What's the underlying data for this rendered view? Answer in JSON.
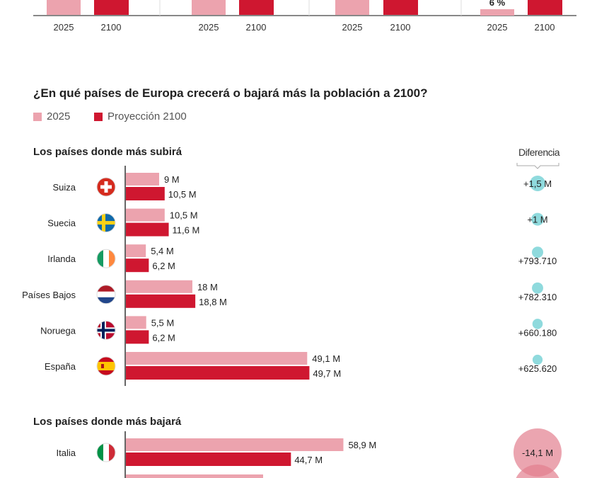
{
  "colors": {
    "c2025": "#eca3ae",
    "c2100": "#cf1730",
    "diff_pos": "#8fdadd",
    "diff_neg": "#e27f8e"
  },
  "top_chart": {
    "groups": [
      {
        "labels": [
          "2025",
          "2100"
        ]
      },
      {
        "labels": [
          "2025",
          "2100"
        ]
      },
      {
        "labels": [
          "2025",
          "2100"
        ]
      },
      {
        "labels": [
          "2025",
          "2100"
        ],
        "value_label": "6 %"
      }
    ]
  },
  "title": "¿En qué países de Europa crecerá o bajará más la población a 2100?",
  "legend": [
    "2025",
    "Proyección 2100"
  ],
  "diff_header": "Diferencia",
  "chart_data": {
    "type": "bar",
    "title": "¿En qué países de Europa crecerá o bajará más la población a 2100?",
    "unit": "M",
    "series": [
      {
        "name": "2025"
      },
      {
        "name": "Proyección 2100"
      }
    ],
    "sections": [
      {
        "heading": "Los países donde más subirá",
        "rows": [
          {
            "country": "Suiza",
            "flag": "switzerland-flag-icon",
            "v2025": 9,
            "v2100": 10.5,
            "l2025": "9 M",
            "l2100": "10,5 M",
            "diff": "+1,5 M",
            "diff_value": 1500000
          },
          {
            "country": "Suecia",
            "flag": "sweden-flag-icon",
            "v2025": 10.5,
            "v2100": 11.6,
            "l2025": "10,5 M",
            "l2100": "11,6 M",
            "diff": "+1 M",
            "diff_value": 1000000
          },
          {
            "country": "Irlanda",
            "flag": "ireland-flag-icon",
            "v2025": 5.4,
            "v2100": 6.2,
            "l2025": "5,4 M",
            "l2100": "6,2 M",
            "diff": "+793.710",
            "diff_value": 793710
          },
          {
            "country": "Países Bajos",
            "flag": "netherlands-flag-icon",
            "v2025": 18,
            "v2100": 18.8,
            "l2025": "18 M",
            "l2100": "18,8 M",
            "diff": "+782.310",
            "diff_value": 782310
          },
          {
            "country": "Noruega",
            "flag": "norway-flag-icon",
            "v2025": 5.5,
            "v2100": 6.2,
            "l2025": "5,5 M",
            "l2100": "6,2 M",
            "diff": "+660.180",
            "diff_value": 660180
          },
          {
            "country": "España",
            "flag": "spain-flag-icon",
            "v2025": 49.1,
            "v2100": 49.7,
            "l2025": "49,1 M",
            "l2100": "49,7 M",
            "diff": "+625.620",
            "diff_value": 625620
          }
        ]
      },
      {
        "heading": "Los países donde más bajará",
        "rows": [
          {
            "country": "Italia",
            "flag": "italy-flag-icon",
            "v2025": 58.9,
            "v2100": 44.7,
            "l2025": "58,9 M",
            "l2100": "44,7 M",
            "diff": "-14,1 M",
            "diff_value": -14100000
          }
        ]
      }
    ]
  }
}
